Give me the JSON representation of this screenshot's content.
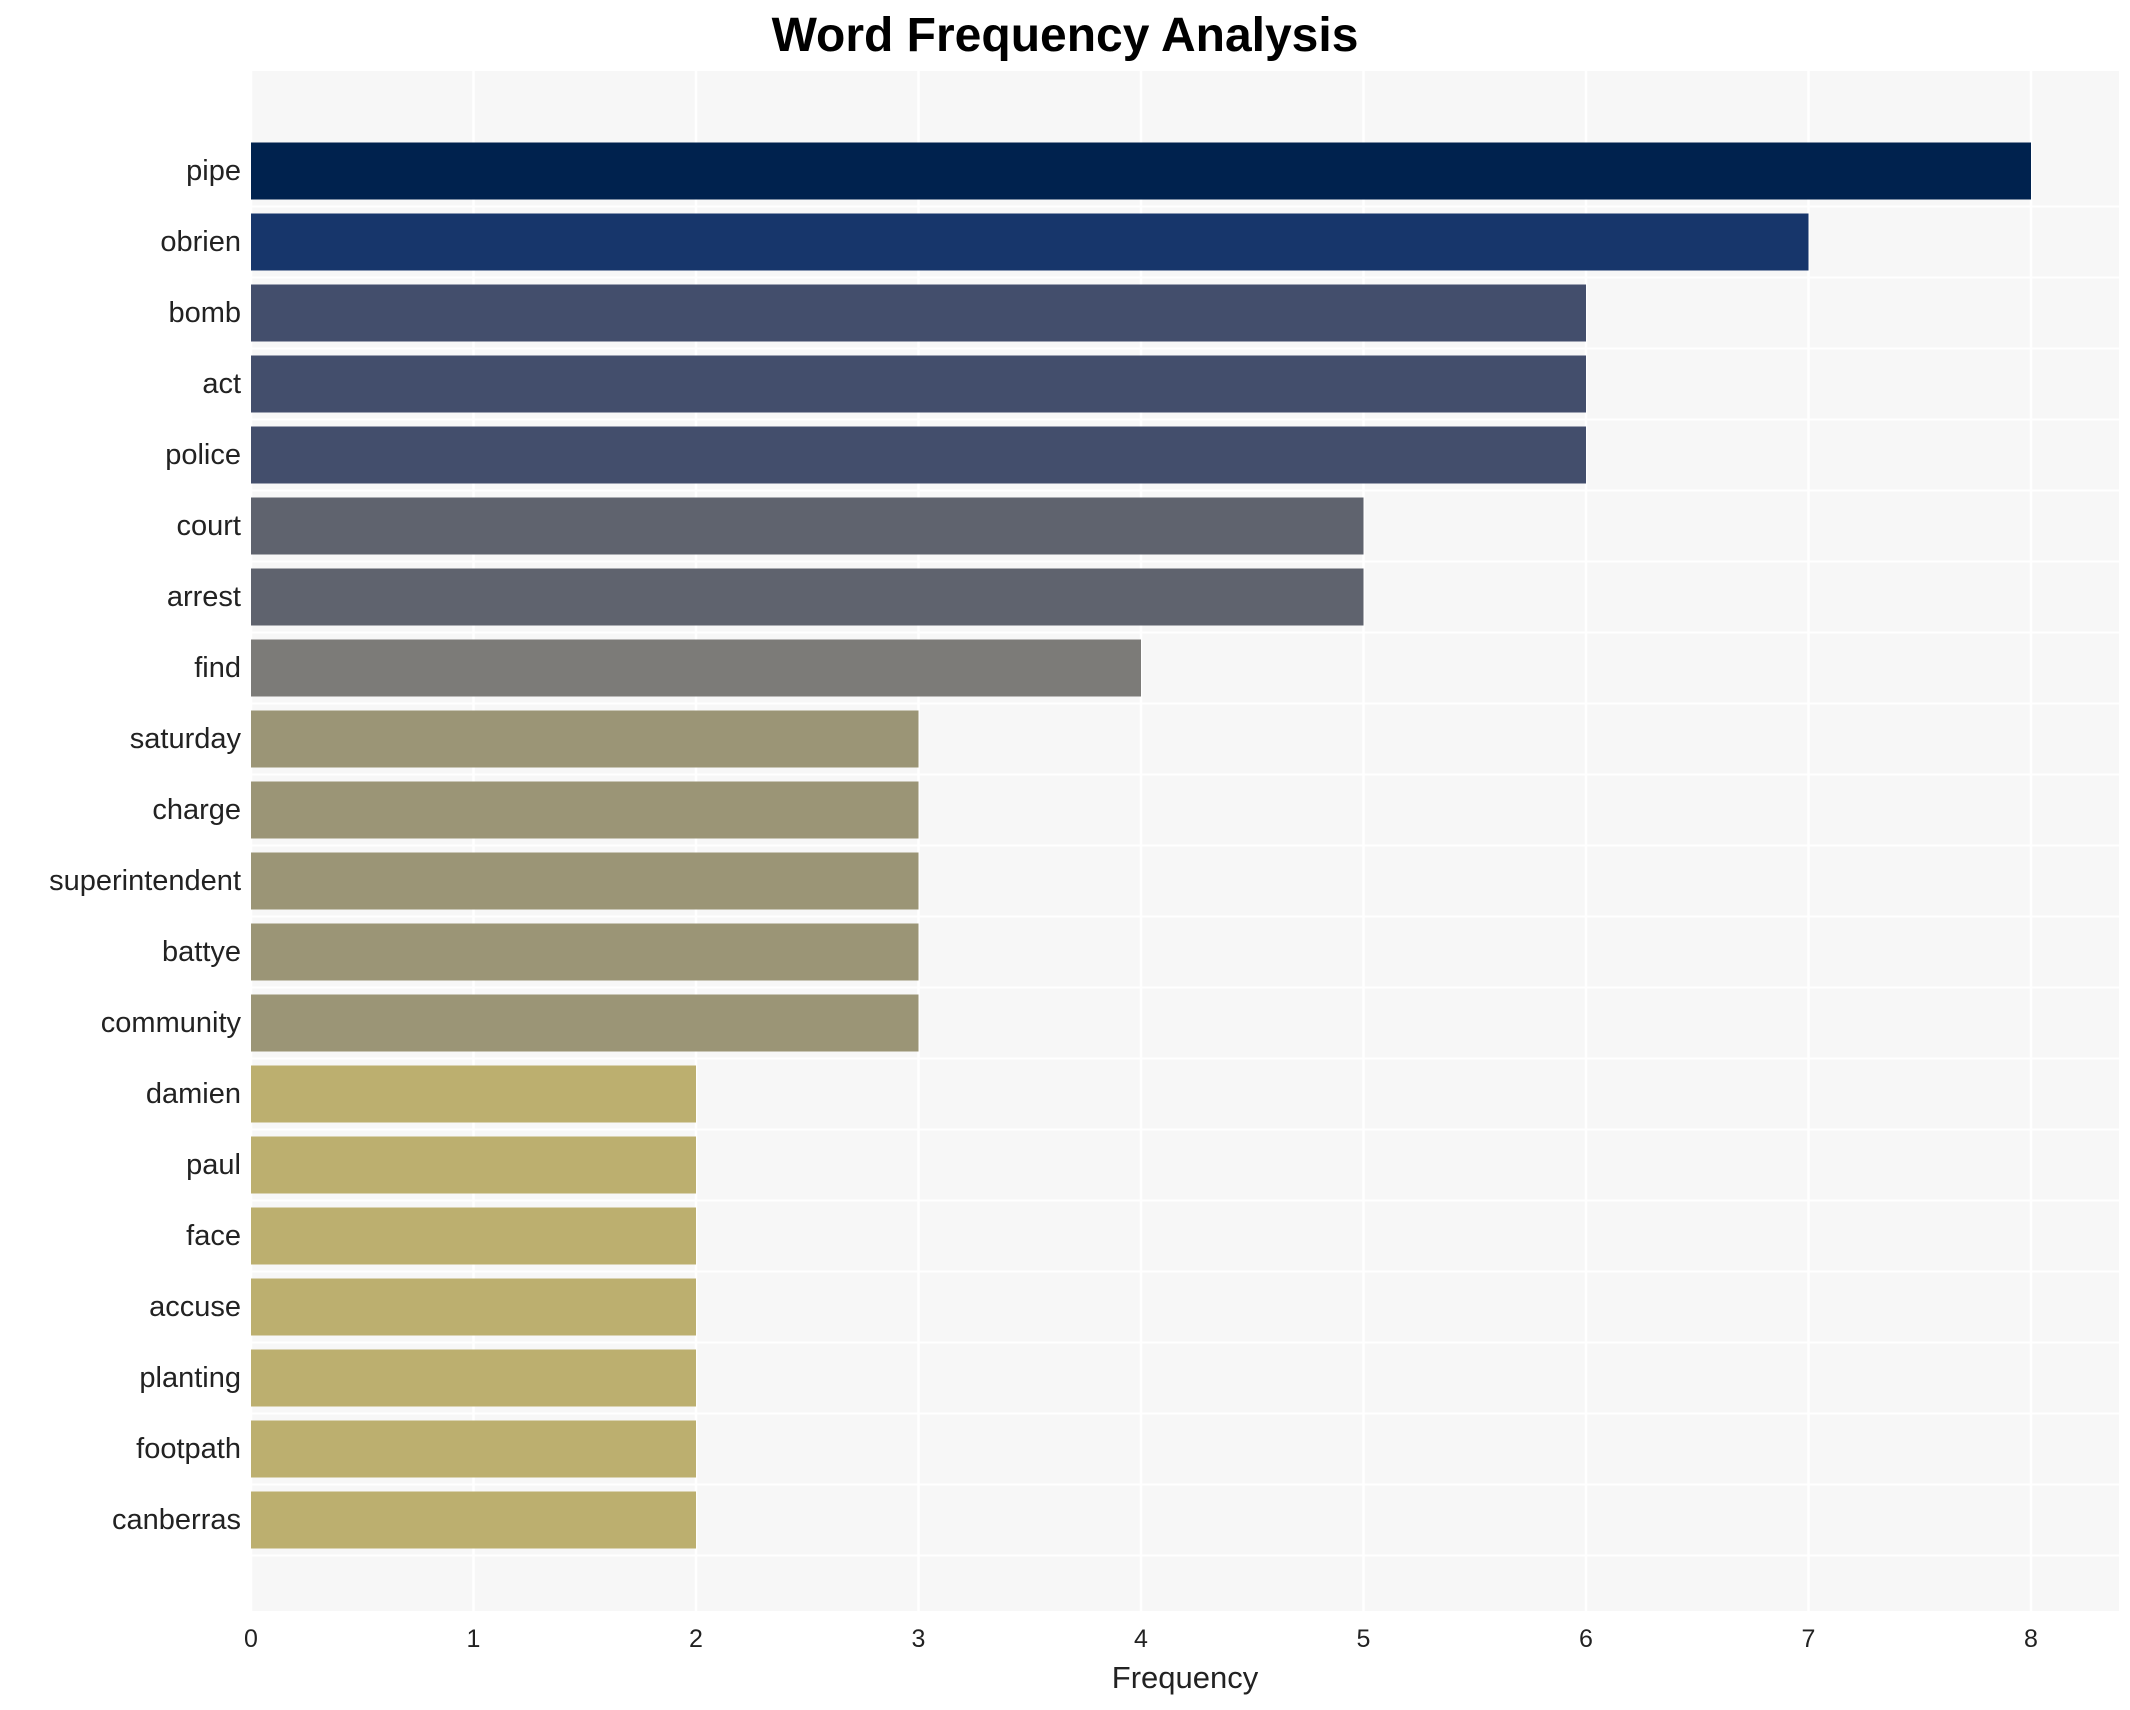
{
  "chart_data": {
    "type": "bar",
    "orientation": "horizontal",
    "title": "Word Frequency Analysis",
    "xlabel": "Frequency",
    "ylabel": "",
    "xlim": [
      0,
      8.4
    ],
    "xticks": [
      0,
      1,
      2,
      3,
      4,
      5,
      6,
      7,
      8
    ],
    "grid": true,
    "categories": [
      "pipe",
      "obrien",
      "bomb",
      "act",
      "police",
      "court",
      "arrest",
      "find",
      "saturday",
      "charge",
      "superintendent",
      "battye",
      "community",
      "damien",
      "paul",
      "face",
      "accuse",
      "planting",
      "footpath",
      "canberras"
    ],
    "values": [
      8,
      7,
      6,
      6,
      6,
      5,
      5,
      4,
      3,
      3,
      3,
      3,
      3,
      2,
      2,
      2,
      2,
      2,
      2,
      2
    ],
    "colors": {
      "8": "#00224e",
      "7": "#17366b",
      "6": "#434e6c",
      "5": "#5f636e",
      "4": "#7c7b78",
      "3": "#9b9576",
      "2": "#bcaf6f"
    },
    "background": "#f7f7f7"
  }
}
